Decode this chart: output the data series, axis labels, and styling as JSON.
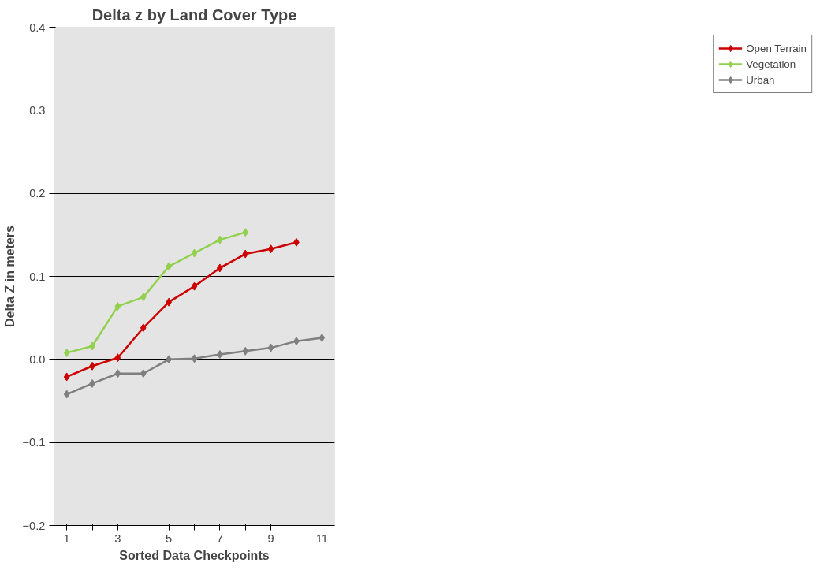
{
  "chart_data": {
    "type": "line",
    "title": "Delta z by Land Cover Type",
    "xlabel": "Sorted Data Checkpoints",
    "ylabel": "Delta Z in meters",
    "categories": [
      "1",
      null,
      "3",
      null,
      "5",
      null,
      "7",
      null,
      "9",
      null,
      "11"
    ],
    "series": [
      {
        "name": "Open Terrain",
        "color": "#cc0000",
        "values": [
          -0.021,
          -0.008,
          0.002,
          0.038,
          0.069,
          0.088,
          0.11,
          0.127,
          0.133,
          0.141,
          null
        ]
      },
      {
        "name": "Vegetation",
        "color": "#92d050",
        "values": [
          0.008,
          0.016,
          0.064,
          0.075,
          0.112,
          0.128,
          0.144,
          0.153,
          null,
          null,
          null
        ]
      },
      {
        "name": "Urban",
        "color": "#7f7f7f",
        "values": [
          -0.042,
          -0.029,
          -0.017,
          -0.017,
          0.0,
          0.001,
          0.006,
          0.01,
          0.014,
          0.022,
          0.026
        ]
      }
    ],
    "ylim": [
      -0.2,
      0.4
    ],
    "yticks": [
      0.4,
      0.3,
      0.2,
      0.1,
      {
        "value": 0,
        "label": "0.0"
      },
      -0.1,
      -0.2
    ],
    "grid": "y",
    "legend": "right",
    "marker": "diamond",
    "line_style": "solid"
  }
}
